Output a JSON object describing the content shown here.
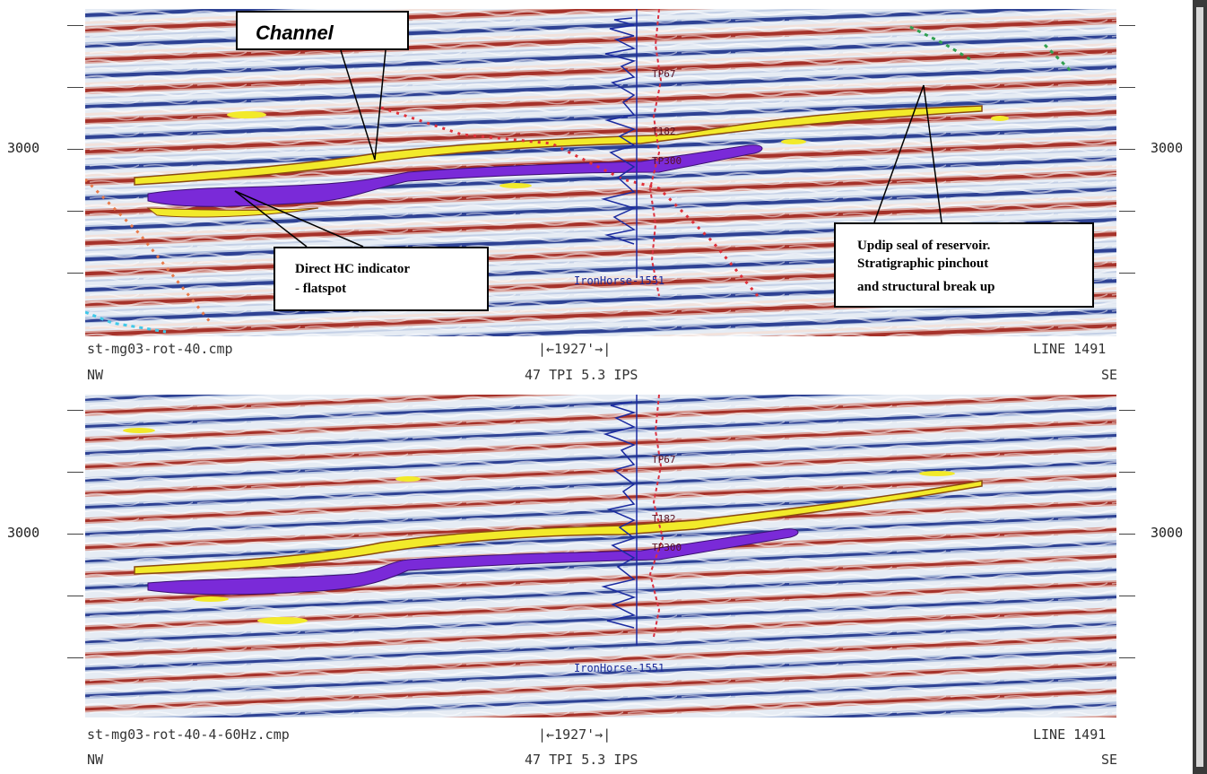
{
  "panels": [
    {
      "depth_left": "3000",
      "depth_right": "3000",
      "filename": "st-mg03-rot-40.cmp",
      "scale_bar": "|←1927'→|",
      "line": "LINE 1491",
      "dir_left": "NW",
      "dir_right": "SE",
      "tpi": "47 TPI 5.3 IPS",
      "well_label": "IronHorse-1551",
      "markers": [
        "TP67",
        "T182",
        "TP300"
      ]
    },
    {
      "depth_left": "3000",
      "depth_right": "3000",
      "filename": "st-mg03-rot-40-4-60Hz.cmp",
      "scale_bar": "|←1927'→|",
      "line": "LINE 1491",
      "dir_left": "NW",
      "dir_right": "SE",
      "tpi": "47 TPI 5.3 IPS",
      "well_label": "IronHorse-1551",
      "markers": [
        "TP67",
        "T182",
        "TP300"
      ]
    }
  ],
  "callouts": {
    "channel": "Channel",
    "hc_line1": "Direct HC indicator",
    "hc_line2": "- flatspot",
    "updip_line1": "Updip seal of reservoir.",
    "updip_line2": "Stratigraphic pinchout",
    "updip_line3": "and structural break up"
  },
  "colors": {
    "trough": "#2a3a8a",
    "peak": "#a8322a",
    "light": "#e8eef6",
    "anomaly_purple": "#7a2ad8",
    "anomaly_yellow": "#f2ea2a",
    "well_log_blue": "#1a2aa0",
    "well_path_red": "#d83040"
  }
}
